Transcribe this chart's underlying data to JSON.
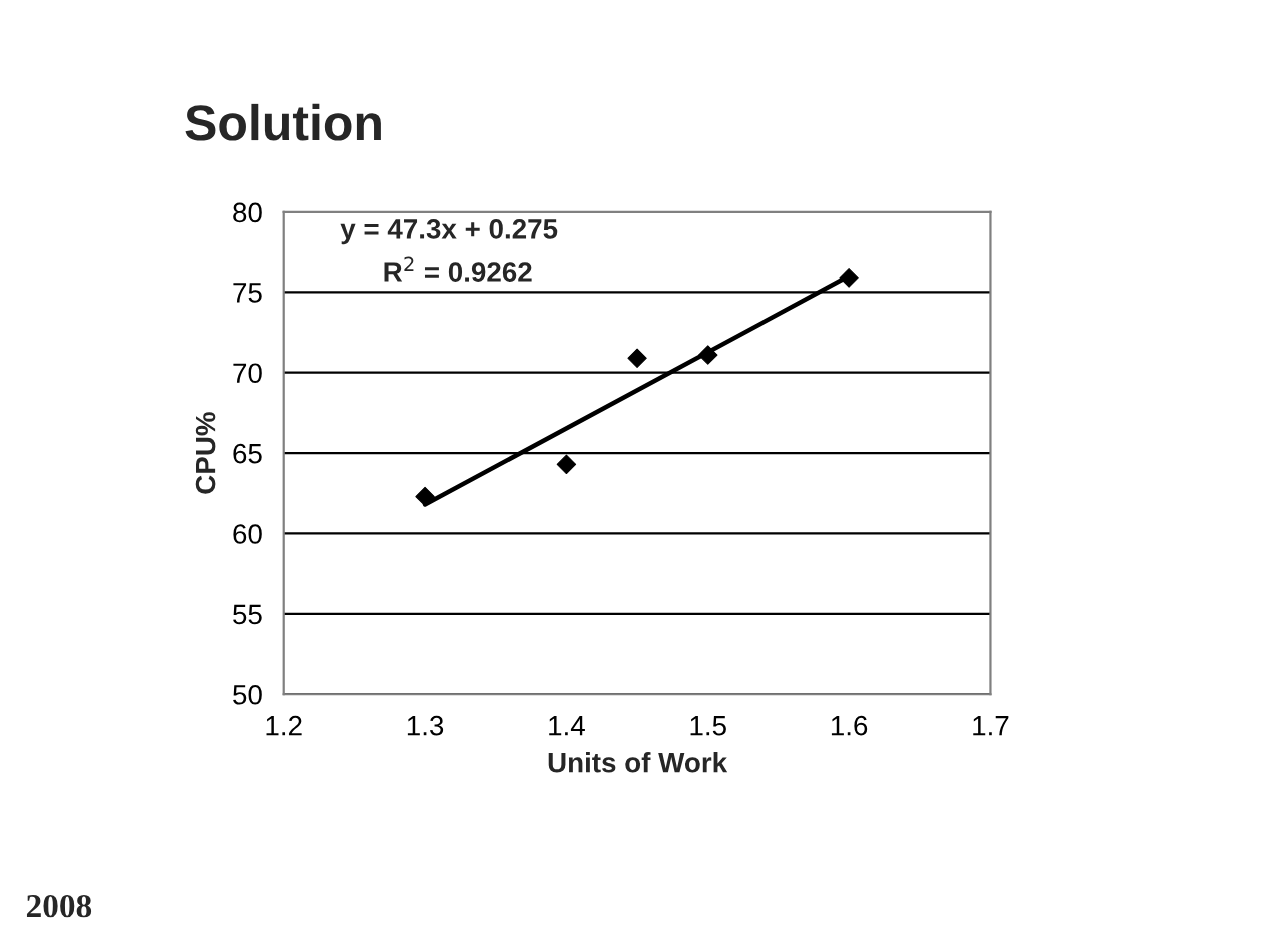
{
  "chart_data": {
    "type": "scatter",
    "title": "Solution",
    "xlabel": "Units of Work",
    "ylabel": "CPU%",
    "series": [
      {
        "color": "#000000",
        "x": [
          1.3,
          1.4,
          1.45,
          1.5,
          1.6
        ],
        "values": [
          62.3,
          64.3,
          70.9,
          71.1,
          75.9
        ],
        "marker": "diamond"
      },
      {
        "type": "line",
        "color": "#000000",
        "x": [
          1.3,
          1.6
        ],
        "values": [
          61.8,
          76.0
        ],
        "line_style": "solid"
      }
    ],
    "xlim": [
      1.2,
      1.7
    ],
    "xticks": [
      1.2,
      1.3,
      1.4,
      1.5,
      1.6,
      1.7
    ],
    "ylim": [
      50,
      80
    ],
    "yticks": [
      50,
      55,
      60,
      65,
      70,
      75,
      80
    ],
    "grid": "y",
    "legend": false,
    "annotations": [
      "y = 47.3x + 0.275",
      "R$^{2}$ = 0.9262",
      "2008"
    ]
  }
}
